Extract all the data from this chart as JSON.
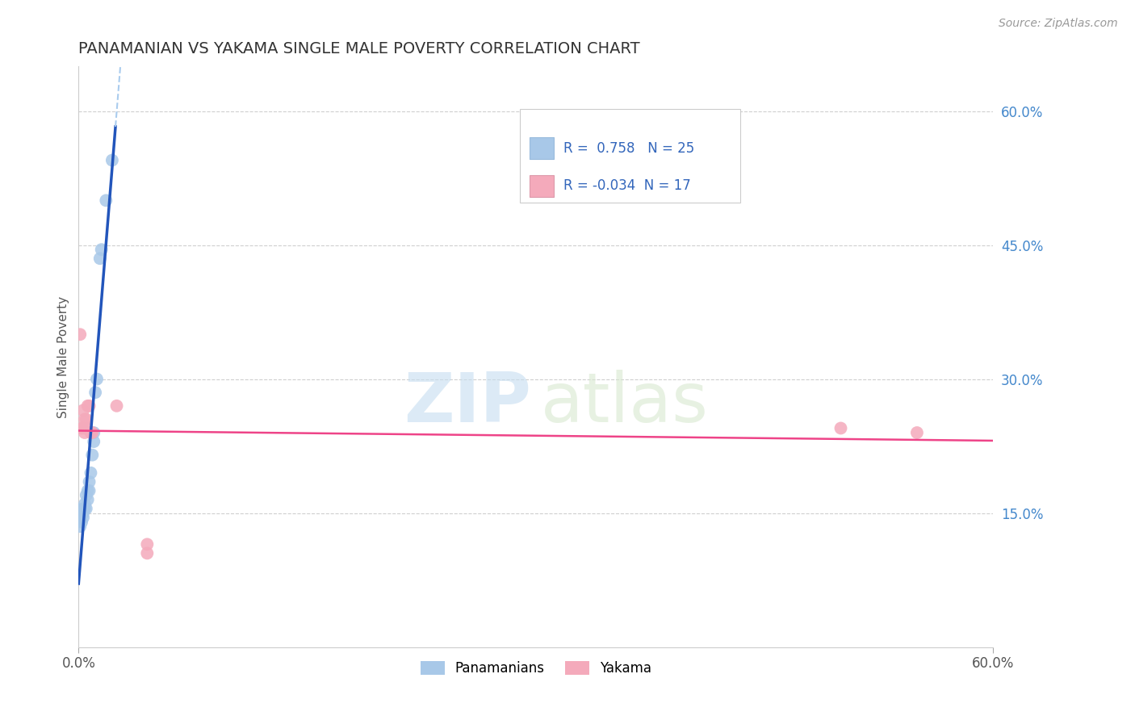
{
  "title": "PANAMANIAN VS YAKAMA SINGLE MALE POVERTY CORRELATION CHART",
  "source": "Source: ZipAtlas.com",
  "ylabel": "Single Male Poverty",
  "legend_label1": "Panamanians",
  "legend_label2": "Yakama",
  "r1": 0.758,
  "n1": 25,
  "r2": -0.034,
  "n2": 17,
  "color_blue": "#a8c8e8",
  "color_pink": "#f4aabb",
  "line_blue": "#2255bb",
  "line_pink": "#ee4488",
  "xlim": [
    0.0,
    0.6
  ],
  "ylim": [
    0.0,
    0.65
  ],
  "yticks": [
    0.15,
    0.3,
    0.45,
    0.6
  ],
  "ytick_labels": [
    "15.0%",
    "30.0%",
    "45.0%",
    "60.0%"
  ],
  "blue_x": [
    0.001,
    0.001,
    0.002,
    0.002,
    0.003,
    0.003,
    0.003,
    0.004,
    0.004,
    0.005,
    0.005,
    0.006,
    0.006,
    0.007,
    0.007,
    0.008,
    0.009,
    0.01,
    0.01,
    0.011,
    0.012,
    0.014,
    0.015,
    0.018,
    0.022
  ],
  "blue_y": [
    0.135,
    0.145,
    0.14,
    0.15,
    0.145,
    0.15,
    0.155,
    0.155,
    0.16,
    0.155,
    0.17,
    0.165,
    0.175,
    0.175,
    0.185,
    0.195,
    0.215,
    0.23,
    0.24,
    0.285,
    0.3,
    0.435,
    0.445,
    0.5,
    0.545
  ],
  "pink_x": [
    0.001,
    0.002,
    0.003,
    0.003,
    0.004,
    0.004,
    0.005,
    0.005,
    0.006,
    0.007,
    0.008,
    0.009,
    0.025,
    0.045,
    0.045,
    0.5,
    0.55
  ],
  "pink_y": [
    0.35,
    0.245,
    0.245,
    0.265,
    0.24,
    0.255,
    0.245,
    0.255,
    0.27,
    0.27,
    0.24,
    0.24,
    0.27,
    0.115,
    0.105,
    0.245,
    0.24
  ],
  "title_color": "#333333",
  "axis_color": "#cccccc"
}
